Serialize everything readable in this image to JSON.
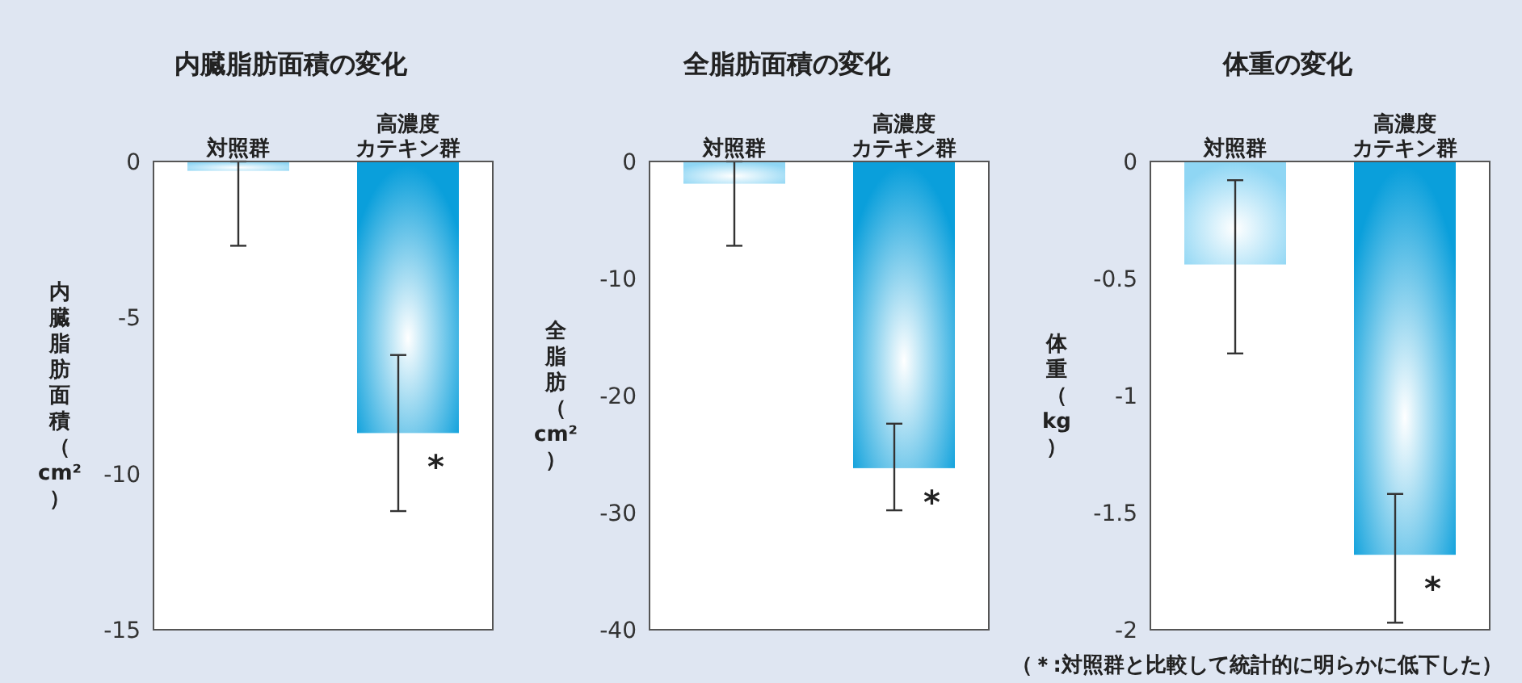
{
  "chart_data": [
    {
      "type": "bar",
      "title": "内臓脂肪面積の変化",
      "ylabel": "内臓脂肪面積（cm²）",
      "categories": [
        "対照群",
        "高濃度カテキン群"
      ],
      "colors": [
        "#8fd6f4",
        "#0a9fdb"
      ],
      "values": [
        -0.3,
        -8.7
      ],
      "errors": [
        [
          -2.7,
          0
        ],
        [
          -11.2,
          -6.2
        ]
      ],
      "ylim": [
        -15,
        0
      ],
      "yticks": [
        0,
        -5,
        -10,
        -15
      ],
      "annotations": [
        {
          "text": "*",
          "x": "高濃度カテキン群",
          "y": -8.7
        }
      ]
    },
    {
      "type": "bar",
      "title": "全脂肪面積の変化",
      "ylabel": "全脂肪（cm²）",
      "categories": [
        "対照群",
        "高濃度カテキン群"
      ],
      "colors": [
        "#8fd6f4",
        "#0a9fdb"
      ],
      "values": [
        -1.9,
        -26.2
      ],
      "errors": [
        [
          -7.2,
          0
        ],
        [
          -29.8,
          -22.4
        ]
      ],
      "ylim": [
        -40,
        0
      ],
      "yticks": [
        0,
        -10,
        -20,
        -30,
        -40
      ],
      "annotations": [
        {
          "text": "*",
          "x": "高濃度カテキン群",
          "y": -26.2
        }
      ]
    },
    {
      "type": "bar",
      "title": "体重の変化",
      "ylabel": "体重（kg）",
      "categories": [
        "対照群",
        "高濃度カテキン群"
      ],
      "colors": [
        "#8fd6f4",
        "#0a9fdb"
      ],
      "values": [
        -0.44,
        -1.68
      ],
      "errors": [
        [
          -0.82,
          -0.08
        ],
        [
          -1.97,
          -1.42
        ]
      ],
      "ylim": [
        -2,
        0
      ],
      "yticks": [
        0,
        -0.5,
        -1,
        -1.5,
        -2
      ],
      "annotations": [
        {
          "text": "*",
          "x": "高濃度カテキン群",
          "y": -1.68
        },
        "（＊:対照群と比較して統計的に明らかに低下した）"
      ]
    }
  ]
}
